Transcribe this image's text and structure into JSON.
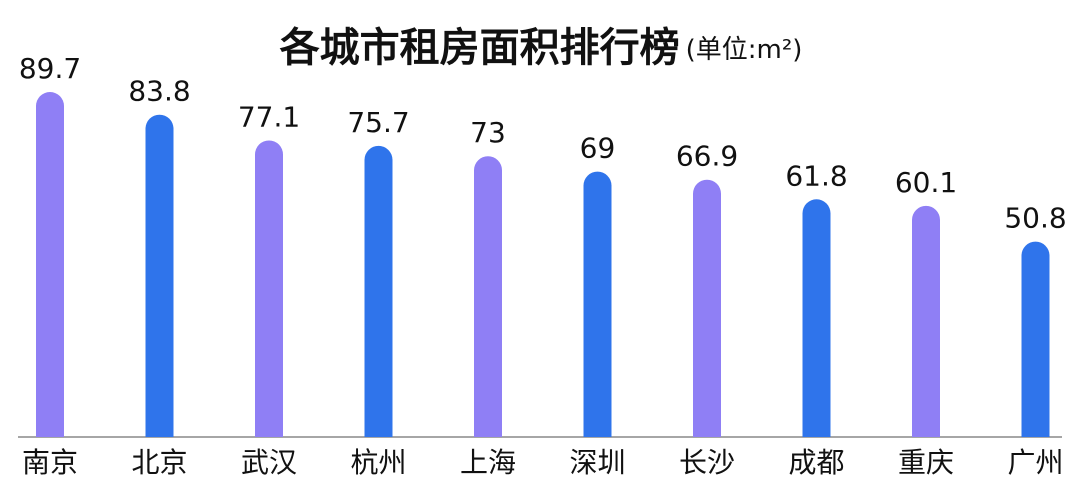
{
  "chart_data": {
    "type": "bar",
    "title": "各城市租房面积排行榜",
    "subtitle": "(单位:m²)",
    "categories": [
      "南京",
      "北京",
      "武汉",
      "杭州",
      "上海",
      "深圳",
      "长沙",
      "成都",
      "重庆",
      "广州"
    ],
    "values": [
      89.7,
      83.8,
      77.1,
      75.7,
      73,
      69,
      66.9,
      61.8,
      60.1,
      50.8
    ],
    "colors": [
      "#8f7ff5",
      "#2f74eb",
      "#8f7ff5",
      "#2f74eb",
      "#8f7ff5",
      "#2f74eb",
      "#8f7ff5",
      "#2f74eb",
      "#8f7ff5",
      "#2f74eb"
    ]
  }
}
